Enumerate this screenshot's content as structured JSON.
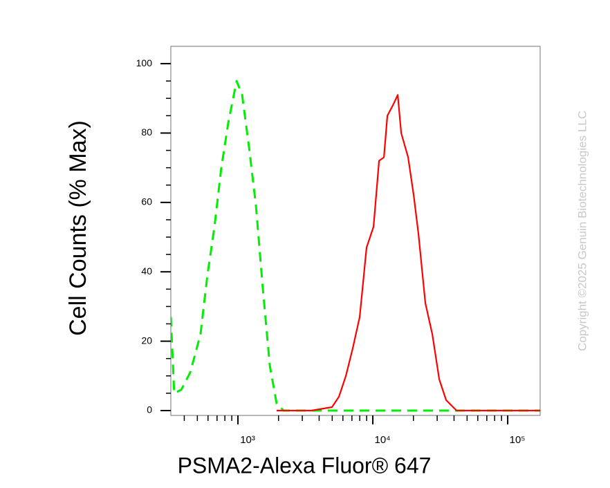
{
  "chart_data": {
    "type": "line",
    "ylabel": "Cell Counts (% Max)",
    "xlabel": "PSMA2-Alexa Fluor® 647",
    "watermark": "Copyright ©2025 Genuin Biotechnologies LLC",
    "xscale": "log",
    "xlim": [
      318,
      174000
    ],
    "xticks": [
      {
        "value": 1000,
        "label": "10³"
      },
      {
        "value": 10000,
        "label": "10⁴"
      },
      {
        "value": 100000,
        "label": "10⁵"
      }
    ],
    "xminorticks": [
      400,
      500,
      600,
      700,
      800,
      900,
      2000,
      3000,
      4000,
      5000,
      6000,
      7000,
      8000,
      9000,
      20000,
      30000,
      40000,
      50000,
      60000,
      70000,
      80000,
      90000
    ],
    "ylim": [
      -1.4,
      105
    ],
    "yticks": [
      0,
      20,
      40,
      60,
      80,
      100
    ],
    "yminorticks": [
      5,
      10,
      15,
      25,
      30,
      35,
      45,
      50,
      55,
      65,
      70,
      75,
      85,
      90,
      95
    ],
    "series": [
      {
        "color": "#00ee00",
        "dashed": true,
        "x": [
          318,
          337,
          380,
          443,
          528,
          594,
          670,
          753,
          848,
          977,
          1074,
          1208,
          1360,
          1530,
          1722,
          1937,
          2180,
          6310,
          20560,
          174000
        ],
        "values": [
          27,
          5,
          6,
          11,
          22,
          39,
          53,
          70,
          83,
          95,
          91,
          76,
          59,
          35,
          13,
          2,
          0,
          0,
          0,
          0
        ]
      },
      {
        "color": "#ff0000",
        "dashed": false,
        "x": [
          1937,
          3500,
          4980,
          5610,
          6310,
          7100,
          7990,
          8990,
          10120,
          11120,
          12080,
          12820,
          14090,
          15300,
          16230,
          18270,
          20090,
          21790,
          24520,
          27600,
          31060,
          34960,
          41780,
          52890,
          174000
        ],
        "values": [
          0,
          0,
          1,
          4,
          10,
          18,
          27,
          47,
          53,
          72,
          73,
          85,
          88,
          91,
          80,
          73,
          62,
          51,
          31,
          22,
          9,
          3,
          0,
          0,
          0
        ]
      }
    ]
  }
}
